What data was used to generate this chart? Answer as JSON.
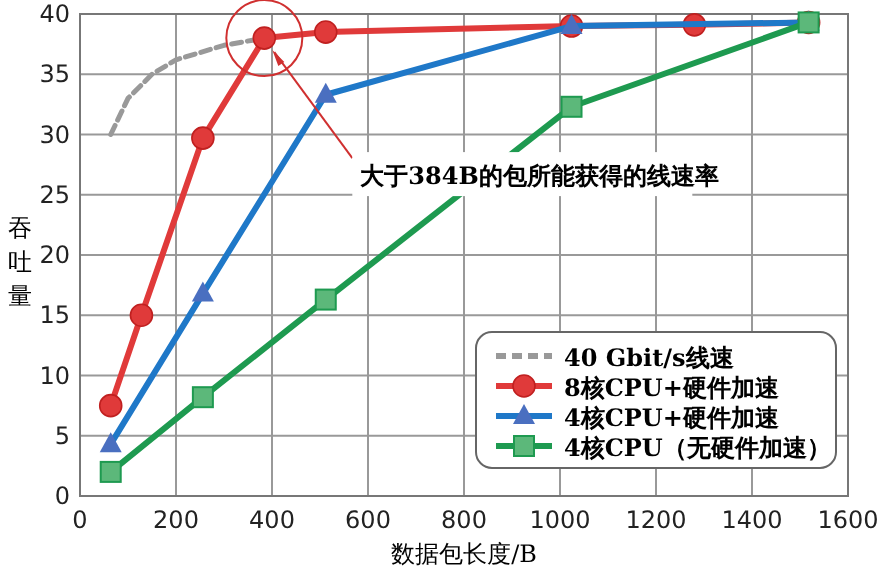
{
  "chart_data": {
    "type": "line",
    "xlabel": "数据包长度/B",
    "ylabel": "吞吐量",
    "xlim": [
      0,
      1600
    ],
    "xticks": [
      0,
      200,
      400,
      600,
      800,
      1000,
      1200,
      1400,
      1600
    ],
    "ylim": [
      0,
      40
    ],
    "yticks": [
      0,
      5,
      10,
      15,
      20,
      25,
      30,
      35,
      40
    ],
    "grid": true,
    "legend": "bottom right",
    "annotations": [
      {
        "text": "大于384B的包所能获得的线速率",
        "x": 384,
        "y": 38
      }
    ],
    "series": [
      {
        "name": "40 Gbit/s线速",
        "color": "#999999",
        "line_style": "dashed",
        "marker": "none",
        "x": [
          64,
          100,
          150,
          200,
          300,
          384
        ],
        "values": [
          30,
          33,
          35,
          36.2,
          37.4,
          38
        ]
      },
      {
        "name": "8核CPU+硬件加速",
        "color": "#e03a3a",
        "marker": "circle",
        "x": [
          64,
          128,
          256,
          384,
          512,
          1024,
          1280,
          1518
        ],
        "values": [
          7.5,
          15,
          29.7,
          38,
          38.5,
          39,
          39.1,
          39.3
        ]
      },
      {
        "name": "4核CPU+硬件加速",
        "color": "#1f78c8",
        "marker": "triangle",
        "x": [
          64,
          256,
          512,
          1024,
          1518
        ],
        "values": [
          4.3,
          16.8,
          33.3,
          39,
          39.3
        ]
      },
      {
        "name": "4核CPU（无硬件加速）",
        "color": "#1e9a50",
        "marker": "square",
        "x": [
          64,
          256,
          512,
          1024,
          1518
        ],
        "values": [
          2,
          8.2,
          16.3,
          32.3,
          39.3
        ]
      }
    ]
  }
}
